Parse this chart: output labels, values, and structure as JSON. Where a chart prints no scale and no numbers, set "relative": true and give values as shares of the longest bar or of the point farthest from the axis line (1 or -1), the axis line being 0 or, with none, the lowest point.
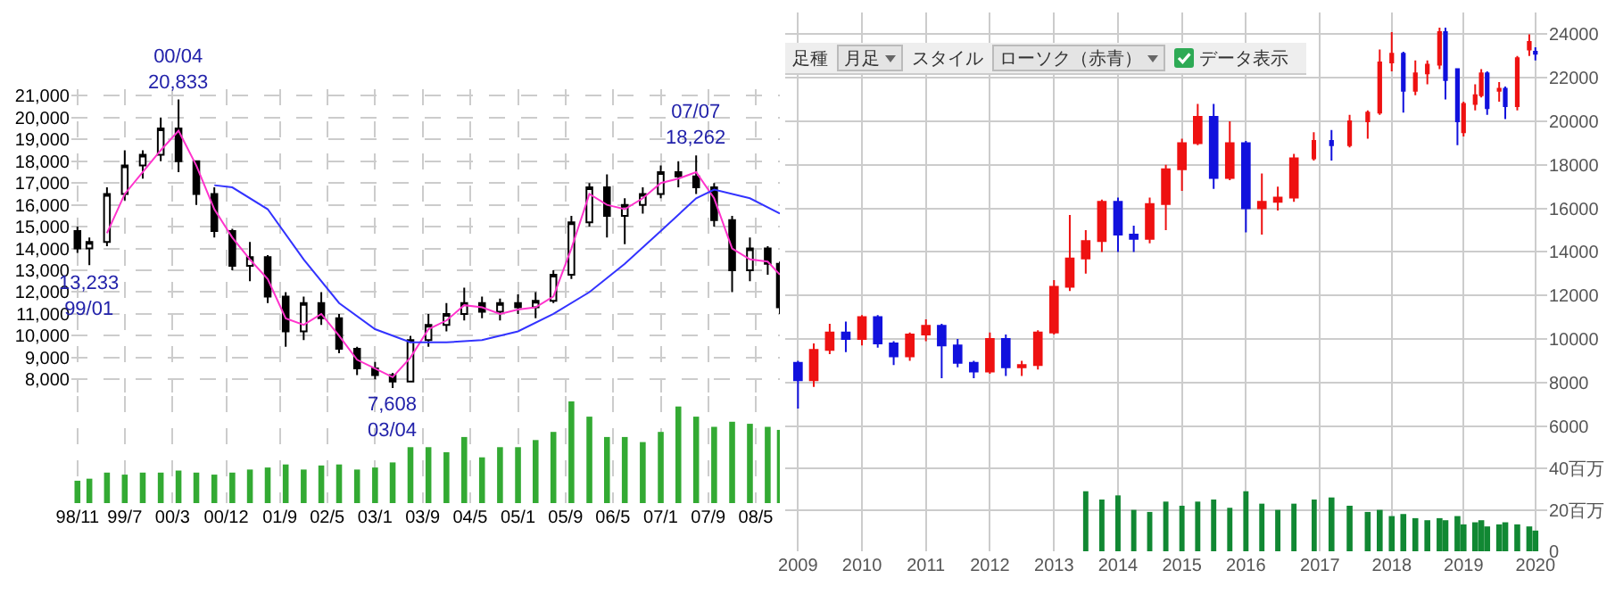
{
  "chart_data": [
    {
      "type": "candlestick",
      "grid": true,
      "tick_labels": "y",
      "colors": [
        "#000000",
        "#ffffff",
        "#ffffff",
        "#ffffff",
        "#ffffff",
        "#ffffff",
        "#000000",
        "#000000",
        "#000000",
        "#000000",
        "#ffffff",
        "#000000",
        "#000000",
        "#ffffff",
        "#000000",
        "#000000",
        "#000000",
        "#000000",
        "#000000",
        "#ffffff",
        "#ffffff",
        "#ffffff",
        "#ffffff",
        "#000000",
        "#ffffff",
        "#000000",
        "#ffffff",
        "#ffffff",
        "#ffffff",
        "#ffffff",
        "#000000",
        "#ffffff",
        "#ffffff",
        "#ffffff",
        "#000000",
        "#000000",
        "#000000",
        "#000000",
        "#ffffff",
        "#000000",
        "#000000"
      ],
      "x": [
        "1998-11",
        "1999-01",
        "1999-04",
        "1999-07",
        "1999-10",
        "2000-01",
        "2000-04",
        "2000-07",
        "2000-10",
        "2001-01",
        "2001-04",
        "2001-07",
        "2001-10",
        "2002-01",
        "2002-04",
        "2002-07",
        "2002-10",
        "2003-01",
        "2003-04",
        "2003-07",
        "2003-10",
        "2004-01",
        "2004-04",
        "2004-07",
        "2004-10",
        "2005-01",
        "2005-04",
        "2005-07",
        "2005-10",
        "2006-01",
        "2006-04",
        "2006-07",
        "2006-10",
        "2007-01",
        "2007-04",
        "2007-07",
        "2007-10",
        "2008-01",
        "2008-04",
        "2008-07",
        "2008-09"
      ],
      "xticks": [
        {
          "value": "1998-11",
          "label": null
        },
        {
          "value": "1999-07",
          "label": null
        },
        {
          "value": "2000-03",
          "label": null
        },
        {
          "value": "2000-12",
          "label": null
        },
        {
          "value": "2001-09",
          "label": null
        },
        {
          "value": "2002-05",
          "label": null
        },
        {
          "value": "2003-01",
          "label": null
        },
        {
          "value": "2003-09",
          "label": null
        },
        {
          "value": "2004-05",
          "label": null
        },
        {
          "value": "2005-01",
          "label": null
        },
        {
          "value": "2005-09",
          "label": null
        },
        {
          "value": "2006-05",
          "label": null
        },
        {
          "value": "2007-01",
          "label": null
        },
        {
          "value": "2007-09",
          "label": null
        },
        {
          "value": "2008-05",
          "label": null
        }
      ],
      "ohlc": [
        [
          14800,
          15000,
          13800,
          14000
        ],
        [
          14000,
          14500,
          13233,
          14300
        ],
        [
          14300,
          16800,
          14100,
          16500
        ],
        [
          16500,
          18500,
          16200,
          17800
        ],
        [
          17800,
          18500,
          17200,
          18300
        ],
        [
          18300,
          20000,
          18000,
          19500
        ],
        [
          19500,
          20833,
          17500,
          18000
        ],
        [
          18000,
          18000,
          16000,
          16500
        ],
        [
          16500,
          16800,
          14500,
          14800
        ],
        [
          14800,
          14900,
          13000,
          13200
        ],
        [
          13200,
          14300,
          12500,
          13600
        ],
        [
          13600,
          13700,
          11500,
          11800
        ],
        [
          11800,
          12000,
          9500,
          10200
        ],
        [
          10200,
          11800,
          9800,
          11500
        ],
        [
          11500,
          12000,
          10500,
          10800
        ],
        [
          10800,
          11000,
          9200,
          9400
        ],
        [
          9400,
          9500,
          8200,
          8500
        ],
        [
          8500,
          8800,
          8000,
          8200
        ],
        [
          8200,
          8300,
          7608,
          7900
        ],
        [
          7900,
          10000,
          7900,
          9800
        ],
        [
          9800,
          11000,
          9500,
          10500
        ],
        [
          10500,
          11500,
          10200,
          11000
        ],
        [
          11000,
          12200,
          10700,
          11500
        ],
        [
          11500,
          11800,
          10800,
          11100
        ],
        [
          11100,
          11700,
          10700,
          11500
        ],
        [
          11500,
          11900,
          11000,
          11300
        ],
        [
          11300,
          12000,
          10800,
          11600
        ],
        [
          11600,
          13000,
          11500,
          12800
        ],
        [
          12800,
          15500,
          12600,
          15200
        ],
        [
          15200,
          17000,
          15000,
          16800
        ],
        [
          16800,
          17400,
          14500,
          15500
        ],
        [
          15500,
          16300,
          14200,
          16000
        ],
        [
          16000,
          16800,
          15600,
          16500
        ],
        [
          16500,
          17800,
          16300,
          17500
        ],
        [
          17500,
          18000,
          16800,
          17300
        ],
        [
          17300,
          18262,
          16500,
          16800
        ],
        [
          16800,
          17000,
          15000,
          15300
        ],
        [
          15300,
          15500,
          12000,
          13000
        ],
        [
          13000,
          14500,
          12500,
          14000
        ],
        [
          14000,
          14100,
          12800,
          13300
        ],
        [
          13300,
          13400,
          11000,
          11300
        ]
      ],
      "series": [
        {
          "type": "line",
          "color": "#ff33cc",
          "x": [
            "1999-04",
            "1999-07",
            "1999-10",
            "2000-01",
            "2000-04",
            "2000-07",
            "2000-10",
            "2001-01",
            "2001-04",
            "2001-07",
            "2001-10",
            "2002-01",
            "2002-04",
            "2002-07",
            "2002-10",
            "2003-01",
            "2003-04",
            "2003-07",
            "2003-10",
            "2004-01",
            "2004-04",
            "2004-07",
            "2004-10",
            "2005-01",
            "2005-04",
            "2005-07",
            "2005-10",
            "2006-01",
            "2006-04",
            "2006-07",
            "2006-10",
            "2007-01",
            "2007-04",
            "2007-07",
            "2007-10",
            "2008-01",
            "2008-04",
            "2008-07",
            "2008-09"
          ],
          "values": [
            14700,
            16500,
            17500,
            18500,
            19400,
            17800,
            15800,
            14500,
            13500,
            12600,
            10800,
            10500,
            11000,
            10000,
            8900,
            8500,
            8100,
            9000,
            10300,
            10700,
            11400,
            11300,
            11000,
            11200,
            11300,
            11800,
            14000,
            16500,
            16000,
            15800,
            16300,
            17000,
            17200,
            17500,
            16300,
            14000,
            13500,
            13400,
            12800
          ]
        },
        {
          "type": "line",
          "color": "#3333ff",
          "x": [
            "2000-10",
            "2001-01",
            "2001-07",
            "2002-01",
            "2002-07",
            "2003-01",
            "2003-07",
            "2004-01",
            "2004-07",
            "2005-01",
            "2005-07",
            "2006-01",
            "2006-07",
            "2007-01",
            "2007-07",
            "2007-10",
            "2008-04",
            "2008-09"
          ],
          "values": [
            16900,
            16800,
            15800,
            13500,
            11500,
            10300,
            9700,
            9700,
            9800,
            10200,
            11000,
            12000,
            13300,
            14800,
            16300,
            16700,
            16300,
            15600
          ]
        }
      ],
      "xlim": [
        "1998-10",
        "2008-09"
      ],
      "ylim": [
        7400,
        21300
      ],
      "yticks": [
        {
          "value": 8000,
          "label": "8,000"
        },
        {
          "value": 9000,
          "label": "9,000"
        },
        {
          "value": 10000,
          "label": "10,000"
        },
        {
          "value": 11000,
          "label": "11,000"
        },
        {
          "value": 12000,
          "label": "12,000"
        },
        {
          "value": 13000,
          "label": "13,000"
        },
        {
          "value": 14000,
          "label": "14,000"
        },
        {
          "value": 15000,
          "label": "15,000"
        },
        {
          "value": 16000,
          "label": "16,000"
        },
        {
          "value": 17000,
          "label": "17,000"
        },
        {
          "value": 18000,
          "label": "18,000"
        },
        {
          "value": 19000,
          "label": "19,000"
        },
        {
          "value": 20000,
          "label": "20,000"
        },
        {
          "value": 21000,
          "label": "21,000"
        }
      ],
      "annotations": [
        {
          "text": "00/04\n20,833",
          "x": "2000-04",
          "y": 20833
        },
        {
          "text": "13,233\n99/01",
          "x": "1999-01",
          "y": 13233
        },
        {
          "text": "7,608\n03/04",
          "x": "2003-04",
          "y": 7608
        },
        {
          "text": "07/07\n18,262",
          "x": "2007-07",
          "y": 18262
        }
      ]
    },
    {
      "type": "bar",
      "relative": true,
      "grid": true,
      "tick_labels": "x",
      "color": "#33aa33",
      "x": [
        "1998-11",
        "1999-01",
        "1999-04",
        "1999-07",
        "1999-10",
        "2000-01",
        "2000-04",
        "2000-07",
        "2000-10",
        "2001-01",
        "2001-04",
        "2001-07",
        "2001-10",
        "2002-01",
        "2002-04",
        "2002-07",
        "2002-10",
        "2003-01",
        "2003-04",
        "2003-07",
        "2003-10",
        "2004-01",
        "2004-04",
        "2004-07",
        "2004-10",
        "2005-01",
        "2005-04",
        "2005-07",
        "2005-10",
        "2006-01",
        "2006-04",
        "2006-07",
        "2006-10",
        "2007-01",
        "2007-04",
        "2007-07",
        "2007-10",
        "2008-01",
        "2008-04",
        "2008-07",
        "2008-09"
      ],
      "values": [
        0.22,
        0.24,
        0.3,
        0.28,
        0.3,
        0.3,
        0.32,
        0.3,
        0.28,
        0.3,
        0.33,
        0.35,
        0.38,
        0.33,
        0.37,
        0.38,
        0.33,
        0.35,
        0.4,
        0.55,
        0.55,
        0.5,
        0.65,
        0.45,
        0.55,
        0.55,
        0.62,
        0.7,
        1.0,
        0.85,
        0.65,
        0.65,
        0.6,
        0.7,
        0.95,
        0.85,
        0.75,
        0.8,
        0.78,
        0.75,
        0.72
      ],
      "xlim": [
        "1998-10",
        "2008-09"
      ],
      "xticks": [
        {
          "value": "1998-11",
          "label": "98/11"
        },
        {
          "value": "1999-07",
          "label": "99/7"
        },
        {
          "value": "2000-03",
          "label": "00/3"
        },
        {
          "value": "2000-12",
          "label": "00/12"
        },
        {
          "value": "2001-09",
          "label": "01/9"
        },
        {
          "value": "2002-05",
          "label": "02/5"
        },
        {
          "value": "2003-01",
          "label": "03/1"
        },
        {
          "value": "2003-09",
          "label": "03/9"
        },
        {
          "value": "2004-05",
          "label": "04/5"
        },
        {
          "value": "2005-01",
          "label": "05/1"
        },
        {
          "value": "2005-09",
          "label": "05/9"
        },
        {
          "value": "2006-05",
          "label": "06/5"
        },
        {
          "value": "2007-01",
          "label": "07/1"
        },
        {
          "value": "2007-09",
          "label": "07/9"
        },
        {
          "value": "2008-05",
          "label": "08/5"
        }
      ]
    },
    {
      "type": "other",
      "annotations": [
        "足種",
        "月足",
        "スタイル",
        "ローソク（赤青）",
        "データ表示"
      ]
    },
    {
      "type": "candlestick",
      "grid": true,
      "tick_labels": false,
      "colors": [
        "#1111dd",
        "#ee1111",
        "#ee1111",
        "#1111dd",
        "#ee1111",
        "#1111dd",
        "#1111dd",
        "#ee1111",
        "#ee1111",
        "#1111dd",
        "#1111dd",
        "#1111dd",
        "#ee1111",
        "#1111dd",
        "#ee1111",
        "#ee1111",
        "#ee1111",
        "#ee1111",
        "#ee1111",
        "#ee1111",
        "#1111dd",
        "#1111dd",
        "#ee1111",
        "#ee1111",
        "#ee1111",
        "#ee1111",
        "#1111dd",
        "#ee1111",
        "#1111dd",
        "#ee1111",
        "#ee1111",
        "#ee1111"
      ],
      "x": [
        "2009-01",
        "2009-04",
        "2009-07",
        "2009-10",
        "2010-01",
        "2010-04",
        "2010-07",
        "2010-10",
        "2011-01",
        "2011-04",
        "2011-07",
        "2011-10",
        "2012-01",
        "2012-04",
        "2012-07",
        "2012-10",
        "2013-01",
        "2013-04",
        "2013-07",
        "2013-10",
        "2014-01",
        "2014-04",
        "2014-07",
        "2014-10",
        "2015-01",
        "2015-04",
        "2015-07",
        "2015-10",
        "2016-01",
        "2016-04",
        "2016-07",
        "2016-10"
      ],
      "xticks": [
        {
          "value": "2009",
          "label": null
        },
        {
          "value": "2010",
          "label": null
        },
        {
          "value": "2011",
          "label": null
        },
        {
          "value": "2012",
          "label": null
        },
        {
          "value": "2013",
          "label": null
        },
        {
          "value": "2014",
          "label": null
        },
        {
          "value": "2015",
          "label": null
        },
        {
          "value": "2016",
          "label": null
        }
      ],
      "yticks": [
        {
          "value": 6000,
          "label": null
        },
        {
          "value": 8000,
          "label": null
        },
        {
          "value": 10000,
          "label": null
        },
        {
          "value": 12000,
          "label": null
        },
        {
          "value": 14000,
          "label": null
        },
        {
          "value": 16000,
          "label": null
        },
        {
          "value": 18000,
          "label": null
        },
        {
          "value": 20000,
          "label": null
        },
        {
          "value": 22000,
          "label": null
        },
        {
          "value": 24000,
          "label": null
        }
      ],
      "ohlc": [
        [
          8900,
          9000,
          6800,
          8100
        ],
        [
          8100,
          9800,
          7800,
          9500
        ],
        [
          9500,
          10700,
          9300,
          10300
        ],
        [
          10300,
          10800,
          9400,
          10000
        ],
        [
          10000,
          11100,
          9700,
          11000
        ],
        [
          11000,
          11100,
          9600,
          9800
        ],
        [
          9800,
          9900,
          8800,
          9200
        ],
        [
          9200,
          10300,
          9000,
          10200
        ],
        [
          10200,
          10900,
          9900,
          10600
        ],
        [
          10600,
          10700,
          8200,
          9700
        ],
        [
          9700,
          10000,
          8700,
          8900
        ],
        [
          8900,
          9000,
          8200,
          8500
        ],
        [
          8500,
          10300,
          8400,
          10000
        ],
        [
          10000,
          10200,
          8300,
          8700
        ],
        [
          8700,
          9000,
          8300,
          8800
        ],
        [
          8800,
          10400,
          8600,
          10300
        ],
        [
          10300,
          12700,
          10200,
          12400
        ],
        [
          12400,
          15700,
          12200,
          13700
        ],
        [
          13700,
          15000,
          13000,
          14500
        ],
        [
          14500,
          16400,
          14000,
          16300
        ],
        [
          16300,
          16500,
          14000,
          14800
        ],
        [
          14800,
          15200,
          14000,
          14600
        ],
        [
          14600,
          16500,
          14400,
          16200
        ],
        [
          16200,
          18000,
          15000,
          17800
        ],
        [
          17800,
          19200,
          16800,
          19000
        ],
        [
          19000,
          20800,
          18900,
          20200
        ],
        [
          20200,
          20800,
          16900,
          17400
        ],
        [
          17400,
          20000,
          17300,
          19000
        ],
        [
          19000,
          19100,
          14900,
          16000
        ],
        [
          16000,
          17600,
          14800,
          16300
        ],
        [
          16300,
          17000,
          15900,
          16500
        ],
        [
          16500,
          18500,
          16300,
          18300
        ]
      ],
      "xlim": [
        "2008-10-20",
        "2017-01-10"
      ],
      "ylim": [
        5000,
        25000
      ]
    },
    {
      "type": "bar",
      "grid": true,
      "tick_labels": "x",
      "color": "#118833",
      "x": [
        "2013-07",
        "2013-10",
        "2014-01",
        "2014-04",
        "2014-07",
        "2014-10",
        "2015-01",
        "2015-04",
        "2015-07",
        "2015-10",
        "2016-01",
        "2016-04",
        "2016-07",
        "2016-10"
      ],
      "values": [
        29,
        25,
        27,
        20,
        19,
        24,
        22,
        24,
        25,
        21,
        29,
        23,
        20,
        23
      ],
      "xlim": [
        "2008-10-20",
        "2017-01-10"
      ],
      "xticks": [
        {
          "value": "2009",
          "label": "2009"
        },
        {
          "value": "2010",
          "label": "2010"
        },
        {
          "value": "2011",
          "label": "2011"
        },
        {
          "value": "2012",
          "label": "2012"
        },
        {
          "value": "2013",
          "label": "2013"
        },
        {
          "value": "2014",
          "label": "2014"
        },
        {
          "value": "2015",
          "label": "2015"
        },
        {
          "value": "2016",
          "label": "2016"
        }
      ],
      "ylim": [
        0,
        50
      ],
      "yticks": [
        {
          "value": 0,
          "label": null
        },
        {
          "value": 20,
          "label": null
        },
        {
          "value": 40,
          "label": null
        }
      ]
    },
    {
      "type": "candlestick",
      "grid": true,
      "tick_labels": "y",
      "colors": [
        "#ee1111",
        "#1111dd",
        "#ee1111",
        "#ee1111",
        "#ee1111",
        "#ee1111",
        "#1111dd",
        "#ee1111",
        "#ee1111",
        "#ee1111",
        "#1111dd",
        "#1111dd",
        "#ee1111",
        "#ee1111",
        "#ee1111",
        "#1111dd",
        "#ee1111",
        "#1111dd",
        "#ee1111",
        "#ee1111",
        "#1111dd"
      ],
      "x": [
        "2016-12",
        "2017-03",
        "2017-06",
        "2017-09",
        "2017-11",
        "2018-01",
        "2018-03",
        "2018-05",
        "2018-07",
        "2018-09",
        "2018-10",
        "2018-12",
        "2019-01",
        "2019-03",
        "2019-04",
        "2019-05",
        "2019-07",
        "2019-08",
        "2019-10",
        "2019-12",
        "2020-01"
      ],
      "xticks": [
        {
          "value": "2017",
          "label": null
        },
        {
          "value": "2018",
          "label": null
        },
        {
          "value": "2019",
          "label": null
        },
        {
          "value": "2020",
          "label": null
        }
      ],
      "ohlc": [
        [
          18300,
          19500,
          18200,
          19100
        ],
        [
          19100,
          19600,
          18200,
          18900
        ],
        [
          18900,
          20300,
          18800,
          20000
        ],
        [
          20000,
          20500,
          19200,
          20400
        ],
        [
          20400,
          23300,
          20300,
          22700
        ],
        [
          22700,
          24100,
          22300,
          23100
        ],
        [
          23100,
          23200,
          20400,
          21400
        ],
        [
          21400,
          22800,
          21200,
          22200
        ],
        [
          22200,
          22800,
          21700,
          22600
        ],
        [
          22600,
          24300,
          22400,
          24100
        ],
        [
          24100,
          24300,
          21000,
          21900
        ],
        [
          22400,
          22400,
          18900,
          20000
        ],
        [
          19500,
          20900,
          19300,
          20800
        ],
        [
          20800,
          21700,
          20500,
          21200
        ],
        [
          21200,
          22400,
          21100,
          22200
        ],
        [
          22200,
          22300,
          20300,
          20600
        ],
        [
          21400,
          21800,
          20900,
          21500
        ],
        [
          21500,
          21600,
          20100,
          20700
        ],
        [
          20700,
          23000,
          20500,
          22900
        ],
        [
          23300,
          24000,
          23000,
          23650
        ],
        [
          23200,
          23400,
          22800,
          23100
        ]
      ],
      "xlim": [
        "2016-11-20",
        "2020-03-01"
      ],
      "ylim": [
        5000,
        25000
      ],
      "yticks": [
        6000,
        8000,
        10000,
        12000,
        14000,
        16000,
        18000,
        20000,
        22000,
        24000
      ]
    },
    {
      "type": "bar",
      "grid": true,
      "color": "#118833",
      "x": [
        "2016-12",
        "2017-03",
        "2017-06",
        "2017-09",
        "2017-11",
        "2018-01",
        "2018-03",
        "2018-05",
        "2018-07",
        "2018-09",
        "2018-10",
        "2018-12",
        "2019-01",
        "2019-03",
        "2019-04",
        "2019-05",
        "2019-07",
        "2019-08",
        "2019-10",
        "2019-12",
        "2020-01"
      ],
      "values": [
        25,
        26,
        22,
        19,
        20,
        17,
        18,
        16,
        15,
        16,
        15,
        17,
        13,
        14,
        15,
        12,
        13,
        14,
        13,
        12,
        10
      ],
      "xlim": [
        "2016-11-20",
        "2020-03-01"
      ],
      "xticks": [
        {
          "value": "2017",
          "label": "2017"
        },
        {
          "value": "2018",
          "label": "2018"
        },
        {
          "value": "2019",
          "label": "2019"
        },
        {
          "value": "2020",
          "label": "2020"
        }
      ],
      "ylim": [
        0,
        50
      ],
      "yticks": [
        0,
        {
          "value": 20,
          "label": "20百万"
        },
        {
          "value": 40,
          "label": "40百万"
        }
      ]
    }
  ]
}
